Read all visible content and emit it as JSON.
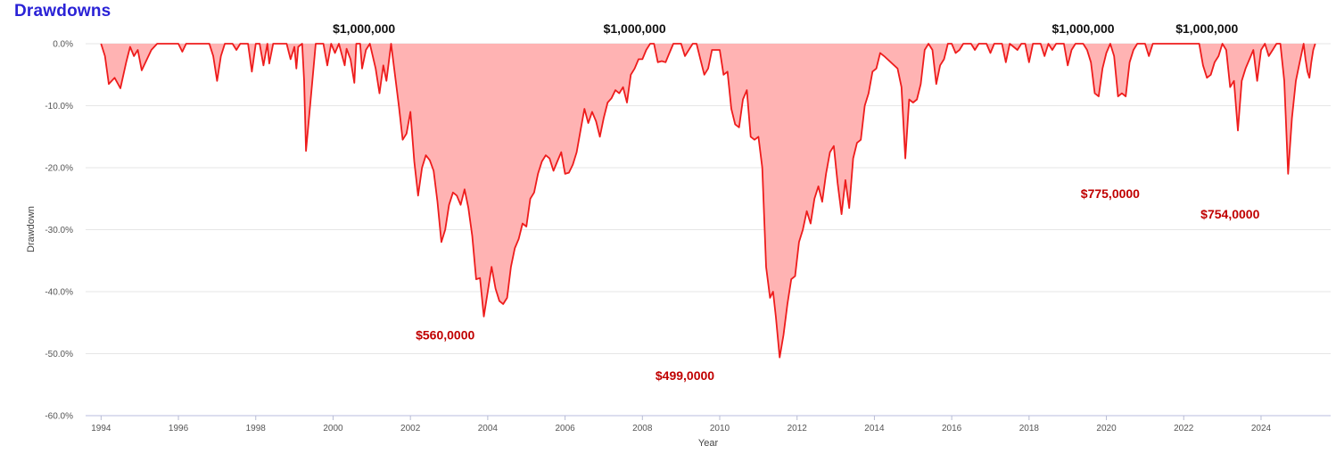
{
  "title": "Drawdowns",
  "chart_data": {
    "type": "area",
    "title": "Drawdowns",
    "xlabel": "Year",
    "ylabel": "Drawdown",
    "xlim": [
      1993.6,
      2025.8
    ],
    "ylim": [
      -60,
      0
    ],
    "x_ticks": [
      1994,
      1996,
      1998,
      2000,
      2002,
      2004,
      2006,
      2008,
      2010,
      2012,
      2014,
      2016,
      2018,
      2020,
      2022,
      2024
    ],
    "y_ticks": [
      0,
      -10,
      -20,
      -30,
      -40,
      -50,
      -60
    ],
    "y_tick_labels": [
      "0.0%",
      "-10.0%",
      "-20.0%",
      "-30.0%",
      "-40.0%",
      "-50.0%",
      "-60.0%"
    ],
    "grid": "horizontal",
    "line_color": "#ee1c1c",
    "fill_color": "#ffb3b3",
    "series": [
      {
        "values": [
          [
            1994.0,
            0
          ],
          [
            1994.1,
            -2
          ],
          [
            1994.2,
            -6.5
          ],
          [
            1994.35,
            -5.5
          ],
          [
            1994.5,
            -7.2
          ],
          [
            1994.65,
            -3
          ],
          [
            1994.75,
            -0.5
          ],
          [
            1994.85,
            -2
          ],
          [
            1994.95,
            -1
          ],
          [
            1995.05,
            -4.3
          ],
          [
            1995.15,
            -3
          ],
          [
            1995.3,
            -1
          ],
          [
            1995.45,
            0
          ],
          [
            1996.0,
            0
          ],
          [
            1996.1,
            -1.3
          ],
          [
            1996.2,
            0
          ],
          [
            1996.5,
            0
          ],
          [
            1996.8,
            0
          ],
          [
            1996.9,
            -2
          ],
          [
            1997.0,
            -6
          ],
          [
            1997.1,
            -2
          ],
          [
            1997.2,
            0
          ],
          [
            1997.4,
            0
          ],
          [
            1997.5,
            -1
          ],
          [
            1997.6,
            0
          ],
          [
            1997.8,
            0
          ],
          [
            1997.9,
            -4.5
          ],
          [
            1998.0,
            0
          ],
          [
            1998.1,
            0
          ],
          [
            1998.2,
            -3.5
          ],
          [
            1998.3,
            0
          ],
          [
            1998.35,
            -3.2
          ],
          [
            1998.45,
            0
          ],
          [
            1998.8,
            0
          ],
          [
            1998.9,
            -2.5
          ],
          [
            1999.0,
            -0.5
          ],
          [
            1999.05,
            -4
          ],
          [
            1999.1,
            -0.5
          ],
          [
            1999.2,
            0
          ],
          [
            1999.25,
            -6
          ],
          [
            1999.3,
            -17.3
          ],
          [
            1999.45,
            -7
          ],
          [
            1999.55,
            0
          ],
          [
            1999.75,
            0
          ],
          [
            1999.85,
            -3.5
          ],
          [
            1999.95,
            0
          ],
          [
            2000.05,
            -1.5
          ],
          [
            2000.15,
            0
          ],
          [
            2000.3,
            -3.5
          ],
          [
            2000.35,
            -0.8
          ],
          [
            2000.45,
            -2.5
          ],
          [
            2000.55,
            -6.3
          ],
          [
            2000.6,
            0
          ],
          [
            2000.7,
            0
          ],
          [
            2000.75,
            -4
          ],
          [
            2000.85,
            -1
          ],
          [
            2000.95,
            0
          ],
          [
            2001.1,
            -4
          ],
          [
            2001.2,
            -8
          ],
          [
            2001.3,
            -3.5
          ],
          [
            2001.38,
            -6
          ],
          [
            2001.5,
            0
          ],
          [
            2001.7,
            -10
          ],
          [
            2001.8,
            -15.5
          ],
          [
            2001.9,
            -14.5
          ],
          [
            2002.0,
            -11
          ],
          [
            2002.1,
            -19
          ],
          [
            2002.2,
            -24.5
          ],
          [
            2002.3,
            -20
          ],
          [
            2002.4,
            -18
          ],
          [
            2002.5,
            -18.8
          ],
          [
            2002.6,
            -20.5
          ],
          [
            2002.7,
            -25.5
          ],
          [
            2002.8,
            -32
          ],
          [
            2002.9,
            -30
          ],
          [
            2003.0,
            -26
          ],
          [
            2003.1,
            -24
          ],
          [
            2003.2,
            -24.5
          ],
          [
            2003.3,
            -26
          ],
          [
            2003.4,
            -23.5
          ],
          [
            2003.5,
            -26.5
          ],
          [
            2003.6,
            -31
          ],
          [
            2003.7,
            -38
          ],
          [
            2003.8,
            -37.8
          ],
          [
            2003.9,
            -44
          ],
          [
            2004.0,
            -40
          ],
          [
            2004.1,
            -36
          ],
          [
            2004.2,
            -39.5
          ],
          [
            2004.3,
            -41.5
          ],
          [
            2004.4,
            -42
          ],
          [
            2004.5,
            -41
          ],
          [
            2004.6,
            -36
          ],
          [
            2004.7,
            -33
          ],
          [
            2004.8,
            -31.5
          ],
          [
            2004.9,
            -29
          ],
          [
            2005.0,
            -29.5
          ],
          [
            2005.1,
            -25
          ],
          [
            2005.2,
            -24
          ],
          [
            2005.3,
            -21
          ],
          [
            2005.4,
            -19
          ],
          [
            2005.5,
            -18
          ],
          [
            2005.6,
            -18.5
          ],
          [
            2005.7,
            -20.5
          ],
          [
            2005.8,
            -19
          ],
          [
            2005.9,
            -17.5
          ],
          [
            2006.0,
            -21
          ],
          [
            2006.1,
            -20.8
          ],
          [
            2006.2,
            -19.5
          ],
          [
            2006.3,
            -17.5
          ],
          [
            2006.4,
            -14
          ],
          [
            2006.5,
            -10.5
          ],
          [
            2006.6,
            -12.8
          ],
          [
            2006.7,
            -11
          ],
          [
            2006.8,
            -12.5
          ],
          [
            2006.9,
            -15
          ],
          [
            2007.0,
            -12
          ],
          [
            2007.1,
            -9.5
          ],
          [
            2007.2,
            -8.8
          ],
          [
            2007.3,
            -7.5
          ],
          [
            2007.4,
            -8
          ],
          [
            2007.5,
            -7
          ],
          [
            2007.6,
            -9.5
          ],
          [
            2007.7,
            -5
          ],
          [
            2007.8,
            -4
          ],
          [
            2007.9,
            -2.5
          ],
          [
            2008.0,
            -2.5
          ],
          [
            2008.1,
            -1
          ],
          [
            2008.2,
            0
          ],
          [
            2008.3,
            0
          ],
          [
            2008.4,
            -3
          ],
          [
            2008.5,
            -2.8
          ],
          [
            2008.6,
            -3
          ],
          [
            2008.7,
            -1.5
          ],
          [
            2008.8,
            0
          ],
          [
            2009.0,
            0
          ],
          [
            2009.1,
            -2
          ],
          [
            2009.2,
            -1
          ],
          [
            2009.3,
            0
          ],
          [
            2009.4,
            0
          ],
          [
            2009.5,
            -2.5
          ],
          [
            2009.6,
            -5
          ],
          [
            2009.7,
            -4
          ],
          [
            2009.8,
            -1
          ],
          [
            2010.0,
            -1
          ],
          [
            2010.1,
            -5
          ],
          [
            2010.2,
            -4.5
          ],
          [
            2010.3,
            -10.5
          ],
          [
            2010.4,
            -13
          ],
          [
            2010.5,
            -13.5
          ],
          [
            2010.6,
            -9
          ],
          [
            2010.7,
            -7.5
          ],
          [
            2010.8,
            -15
          ],
          [
            2010.9,
            -15.5
          ],
          [
            2011.0,
            -15
          ],
          [
            2011.1,
            -20
          ],
          [
            2011.2,
            -36
          ],
          [
            2011.3,
            -41
          ],
          [
            2011.38,
            -40
          ],
          [
            2011.45,
            -44
          ],
          [
            2011.55,
            -50.6
          ],
          [
            2011.65,
            -47
          ],
          [
            2011.75,
            -42
          ],
          [
            2011.85,
            -38
          ],
          [
            2011.95,
            -37.5
          ],
          [
            2012.05,
            -32
          ],
          [
            2012.15,
            -30
          ],
          [
            2012.25,
            -27
          ],
          [
            2012.35,
            -29
          ],
          [
            2012.45,
            -25
          ],
          [
            2012.55,
            -23
          ],
          [
            2012.65,
            -25.5
          ],
          [
            2012.75,
            -21
          ],
          [
            2012.85,
            -17.5
          ],
          [
            2012.95,
            -16.5
          ],
          [
            2013.05,
            -22.5
          ],
          [
            2013.15,
            -27.5
          ],
          [
            2013.25,
            -22
          ],
          [
            2013.35,
            -26.5
          ],
          [
            2013.45,
            -18.5
          ],
          [
            2013.55,
            -16
          ],
          [
            2013.65,
            -15.5
          ],
          [
            2013.75,
            -10
          ],
          [
            2013.85,
            -8
          ],
          [
            2013.95,
            -4.5
          ],
          [
            2014.05,
            -4
          ],
          [
            2014.15,
            -1.5
          ],
          [
            2014.25,
            -2
          ],
          [
            2014.6,
            -4
          ],
          [
            2014.7,
            -7
          ],
          [
            2014.8,
            -18.5
          ],
          [
            2014.9,
            -9
          ],
          [
            2015.0,
            -9.5
          ],
          [
            2015.1,
            -9
          ],
          [
            2015.2,
            -6.5
          ],
          [
            2015.3,
            -1
          ],
          [
            2015.4,
            0
          ],
          [
            2015.5,
            -1
          ],
          [
            2015.6,
            -6.5
          ],
          [
            2015.7,
            -3.5
          ],
          [
            2015.8,
            -2.5
          ],
          [
            2015.9,
            0
          ],
          [
            2016.0,
            0
          ],
          [
            2016.1,
            -1.5
          ],
          [
            2016.2,
            -1
          ],
          [
            2016.3,
            0
          ],
          [
            2016.5,
            0
          ],
          [
            2016.6,
            -1
          ],
          [
            2016.7,
            0
          ],
          [
            2016.9,
            0
          ],
          [
            2017.0,
            -1.5
          ],
          [
            2017.1,
            0
          ],
          [
            2017.3,
            0
          ],
          [
            2017.4,
            -3
          ],
          [
            2017.5,
            0
          ],
          [
            2017.7,
            -1
          ],
          [
            2017.8,
            0
          ],
          [
            2017.9,
            0
          ],
          [
            2018.0,
            -3
          ],
          [
            2018.1,
            0
          ],
          [
            2018.3,
            0
          ],
          [
            2018.4,
            -2
          ],
          [
            2018.5,
            0
          ],
          [
            2018.6,
            -1
          ],
          [
            2018.7,
            0
          ],
          [
            2018.9,
            0
          ],
          [
            2019.0,
            -3.5
          ],
          [
            2019.1,
            -1
          ],
          [
            2019.2,
            0
          ],
          [
            2019.4,
            0
          ],
          [
            2019.5,
            -1
          ],
          [
            2019.6,
            -3
          ],
          [
            2019.7,
            -8
          ],
          [
            2019.8,
            -8.5
          ],
          [
            2019.9,
            -4
          ],
          [
            2020.0,
            -1.5
          ],
          [
            2020.1,
            0
          ],
          [
            2020.2,
            -2
          ],
          [
            2020.3,
            -8.5
          ],
          [
            2020.4,
            -8
          ],
          [
            2020.5,
            -8.5
          ],
          [
            2020.6,
            -3
          ],
          [
            2020.7,
            -1
          ],
          [
            2020.8,
            0
          ],
          [
            2021.0,
            0
          ],
          [
            2021.1,
            -2
          ],
          [
            2021.2,
            0
          ],
          [
            2022.4,
            0
          ],
          [
            2022.5,
            -3.5
          ],
          [
            2022.6,
            -5.5
          ],
          [
            2022.7,
            -5
          ],
          [
            2022.8,
            -3
          ],
          [
            2022.9,
            -2
          ],
          [
            2023.0,
            0
          ],
          [
            2023.1,
            -1
          ],
          [
            2023.2,
            -7
          ],
          [
            2023.3,
            -6
          ],
          [
            2023.4,
            -14
          ],
          [
            2023.5,
            -6
          ],
          [
            2023.6,
            -4
          ],
          [
            2023.7,
            -2.5
          ],
          [
            2023.8,
            -1
          ],
          [
            2023.9,
            -6
          ],
          [
            2024.0,
            -1
          ],
          [
            2024.1,
            0
          ],
          [
            2024.2,
            -2
          ],
          [
            2024.3,
            -1
          ],
          [
            2024.4,
            0
          ],
          [
            2024.5,
            0
          ],
          [
            2024.6,
            -6
          ],
          [
            2024.7,
            -21
          ],
          [
            2024.8,
            -12
          ],
          [
            2024.9,
            -6
          ],
          [
            2025.0,
            -3
          ],
          [
            2025.1,
            0
          ],
          [
            2025.15,
            -2.5
          ],
          [
            2025.2,
            -4.5
          ],
          [
            2025.25,
            -5.5
          ],
          [
            2025.3,
            -3
          ],
          [
            2025.35,
            -1
          ],
          [
            2025.4,
            0
          ]
        ]
      }
    ],
    "annotations_top": [
      {
        "x": 2000.8,
        "label": "$1,000,000"
      },
      {
        "x": 2007.8,
        "label": "$1,000,000"
      },
      {
        "x": 2019.4,
        "label": "$1,000,000"
      },
      {
        "x": 2022.6,
        "label": "$1,000,000"
      }
    ],
    "annotations_low": [
      {
        "x": 2002.9,
        "y": -47,
        "label": "$560,0000"
      },
      {
        "x": 2009.1,
        "y": -53.5,
        "label": "$499,0000"
      },
      {
        "x": 2020.1,
        "y": -24.2,
        "label": "$775,0000"
      },
      {
        "x": 2023.2,
        "y": -27.5,
        "label": "$754,0000"
      }
    ]
  }
}
